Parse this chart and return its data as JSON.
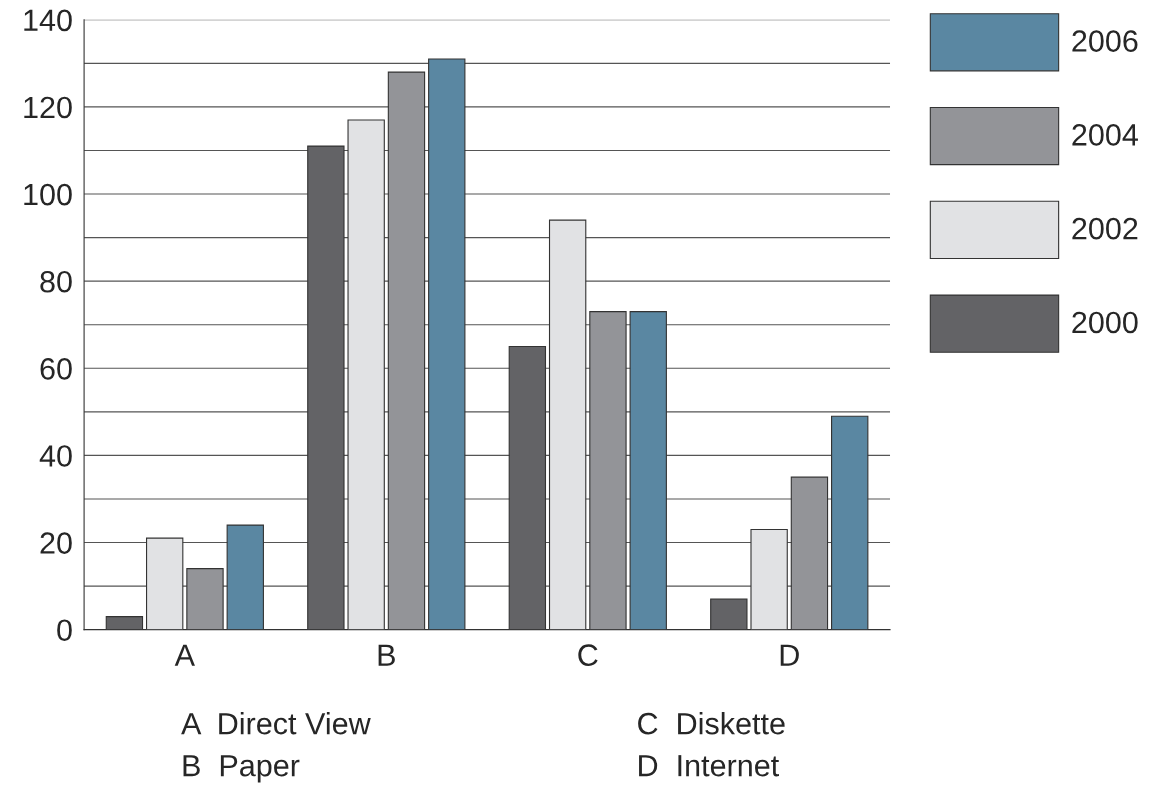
{
  "chart_data": {
    "type": "bar",
    "categories": [
      "A",
      "B",
      "C",
      "D"
    ],
    "series": [
      {
        "name": "2000",
        "color": "#636366",
        "values": [
          3,
          111,
          65,
          7
        ]
      },
      {
        "name": "2002",
        "color": "#e1e2e4",
        "values": [
          21,
          117,
          94,
          23
        ]
      },
      {
        "name": "2004",
        "color": "#939498",
        "values": [
          14,
          128,
          73,
          35
        ]
      },
      {
        "name": "2006",
        "color": "#5a87a2",
        "values": [
          24,
          131,
          73,
          49
        ]
      }
    ],
    "ylim": [
      0,
      140
    ],
    "yticks": [
      0,
      {
        "value": 10,
        "label": null
      },
      20,
      {
        "value": 30,
        "label": null
      },
      40,
      {
        "value": 50,
        "label": null
      },
      60,
      {
        "value": 70,
        "label": null
      },
      80,
      {
        "value": 90,
        "label": null
      },
      100,
      {
        "value": 110,
        "label": null
      },
      120,
      {
        "value": 130,
        "label": null
      },
      140
    ],
    "grid": "y",
    "legend": "top right",
    "annotations": [
      "A  Direct View",
      "B  Paper",
      "C  Diskette",
      "D  Internet"
    ]
  }
}
